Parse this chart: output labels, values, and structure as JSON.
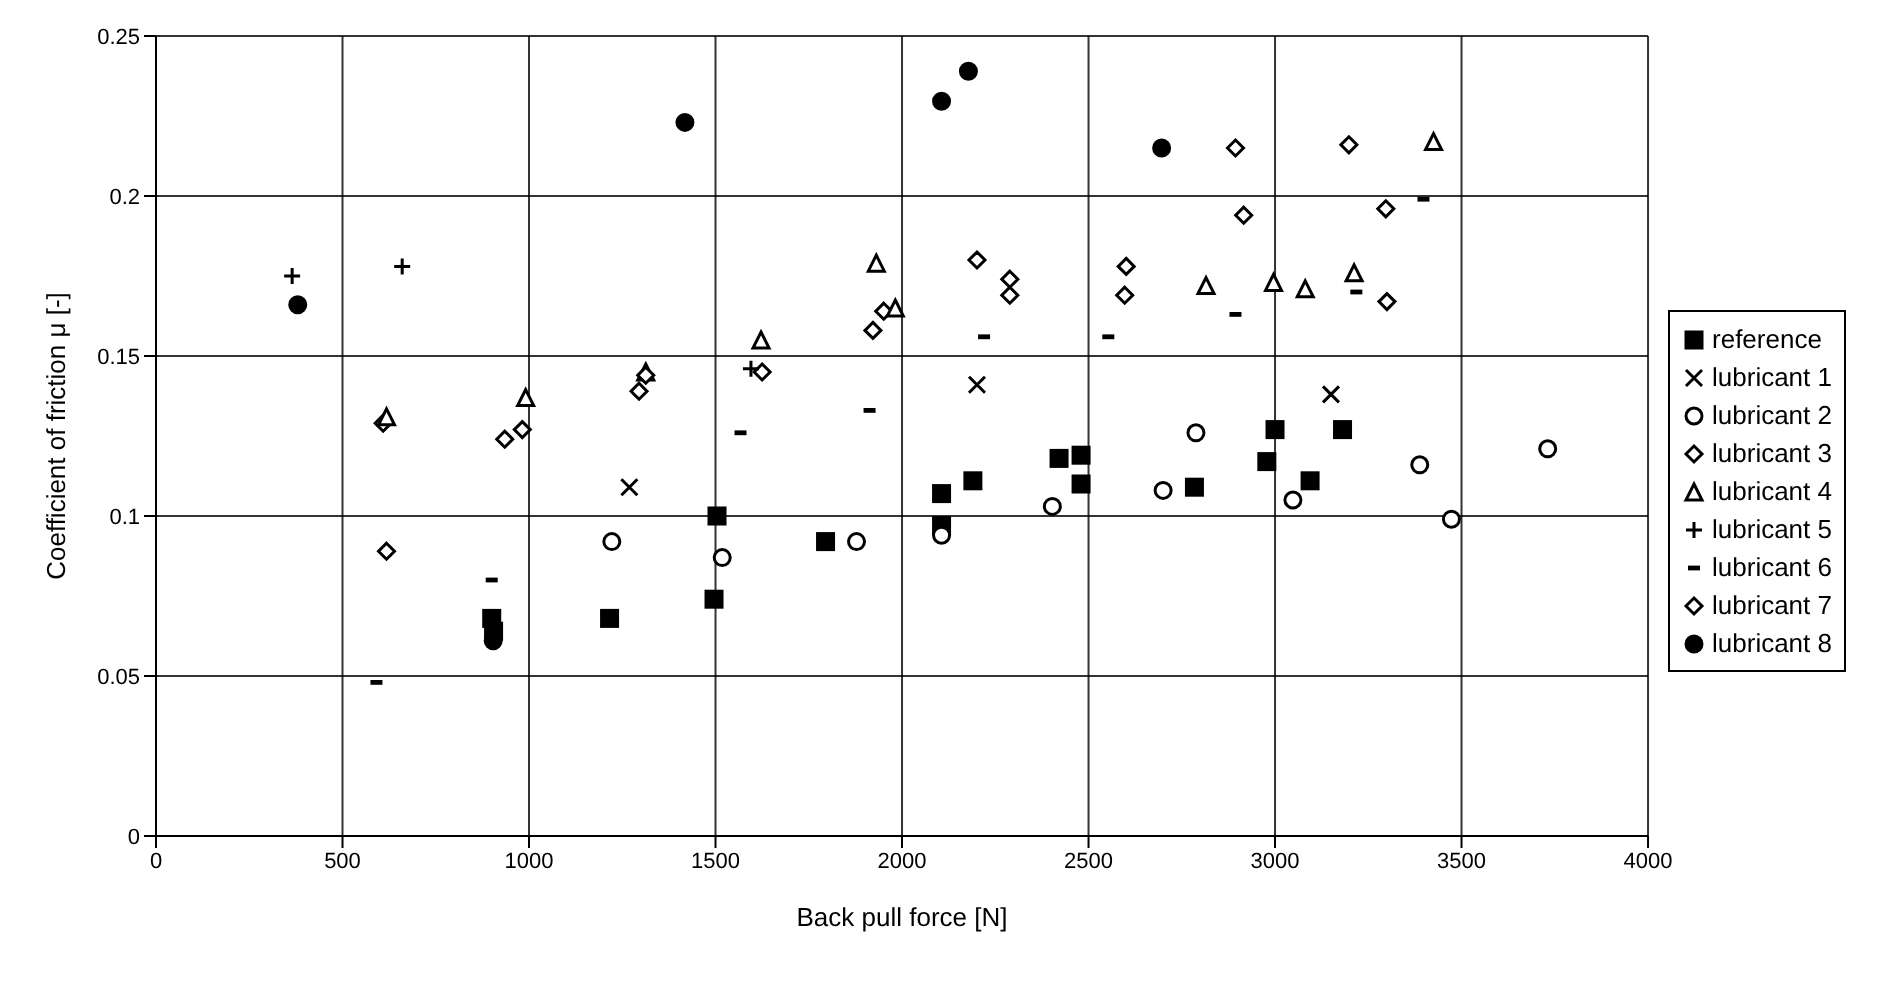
{
  "chart_data": {
    "type": "scatter",
    "xlabel": "Back pull force [N]",
    "ylabel": "Coefficient of friction   μ   [-]",
    "xlim": [
      0,
      4000
    ],
    "xticks": [
      0,
      500,
      1000,
      1500,
      2000,
      2500,
      3000,
      3500,
      4000
    ],
    "ylim": [
      0,
      0.25
    ],
    "yticks": [
      0,
      0.05,
      0.1,
      0.15,
      0.2,
      0.25
    ],
    "grid": true,
    "legend": "right",
    "series": [
      {
        "name": "reference",
        "color": "#000000",
        "marker": "square",
        "x": [
          900,
          905,
          1216,
          1496,
          1504,
          1795,
          2106,
          2106,
          2190,
          2421,
          2480,
          2480,
          2784,
          2978,
          3000,
          3094,
          3181
        ],
        "values": [
          0.068,
          0.064,
          0.068,
          0.074,
          0.1,
          0.092,
          0.107,
          0.097,
          0.111,
          0.118,
          0.119,
          0.11,
          0.109,
          0.117,
          0.127,
          0.111,
          0.127
        ]
      },
      {
        "name": "lubricant 1",
        "color": "#000000",
        "marker": "cross",
        "x": [
          1269,
          2201,
          3150
        ],
        "values": [
          0.109,
          0.141,
          0.138
        ]
      },
      {
        "name": "lubricant 2",
        "color": "#000000",
        "marker": "circle",
        "x": [
          1222,
          1518,
          1878,
          2106,
          2403,
          2700,
          2788,
          3048,
          3388,
          3473,
          3731
        ],
        "values": [
          0.092,
          0.087,
          0.092,
          0.094,
          0.103,
          0.108,
          0.126,
          0.105,
          0.116,
          0.099,
          0.121
        ]
      },
      {
        "name": "lubricant 3",
        "color": "#000000",
        "marker": "diamond",
        "x": [
          609,
          935,
          1295,
          1625,
          1951,
          2289,
          2601,
          2916,
          3297
        ],
        "values": [
          0.129,
          0.124,
          0.139,
          0.145,
          0.164,
          0.174,
          0.178,
          0.194,
          0.196
        ]
      },
      {
        "name": "lubricant 4",
        "color": "#000000",
        "marker": "triangle",
        "x": [
          618,
          991,
          1313,
          1622,
          1931,
          1982,
          2815,
          2996,
          3081,
          3212,
          3425
        ],
        "values": [
          0.131,
          0.137,
          0.145,
          0.155,
          0.179,
          0.165,
          0.172,
          0.173,
          0.171,
          0.176,
          0.217
        ]
      },
      {
        "name": "lubricant 5",
        "color": "#000000",
        "marker": "cross",
        "x": [
          365,
          660,
          1595
        ],
        "values": [
          0.175,
          0.178,
          0.146
        ]
      },
      {
        "name": "lubricant 6",
        "color": "#000000",
        "marker": "square",
        "x": [
          591,
          900,
          1567,
          1913,
          2220,
          2553,
          2894,
          3218,
          3398
        ],
        "values": [
          0.048,
          0.08,
          0.126,
          0.133,
          0.156,
          0.156,
          0.163,
          0.17,
          0.199
        ]
      },
      {
        "name": "lubricant 7",
        "color": "#000000",
        "marker": "diamond",
        "x": [
          618,
          982,
          1313,
          1922,
          2201,
          2289,
          2597,
          2894,
          3198,
          3300
        ],
        "values": [
          0.089,
          0.127,
          0.144,
          0.158,
          0.18,
          0.169,
          0.169,
          0.215,
          0.216,
          0.167
        ]
      },
      {
        "name": "lubricant 8",
        "color": "#000000",
        "marker": "circle",
        "x": [
          380,
          904,
          1418,
          2106,
          2178,
          2696
        ],
        "values": [
          0.166,
          0.061,
          0.223,
          0.2296,
          0.239,
          0.215
        ]
      }
    ]
  }
}
